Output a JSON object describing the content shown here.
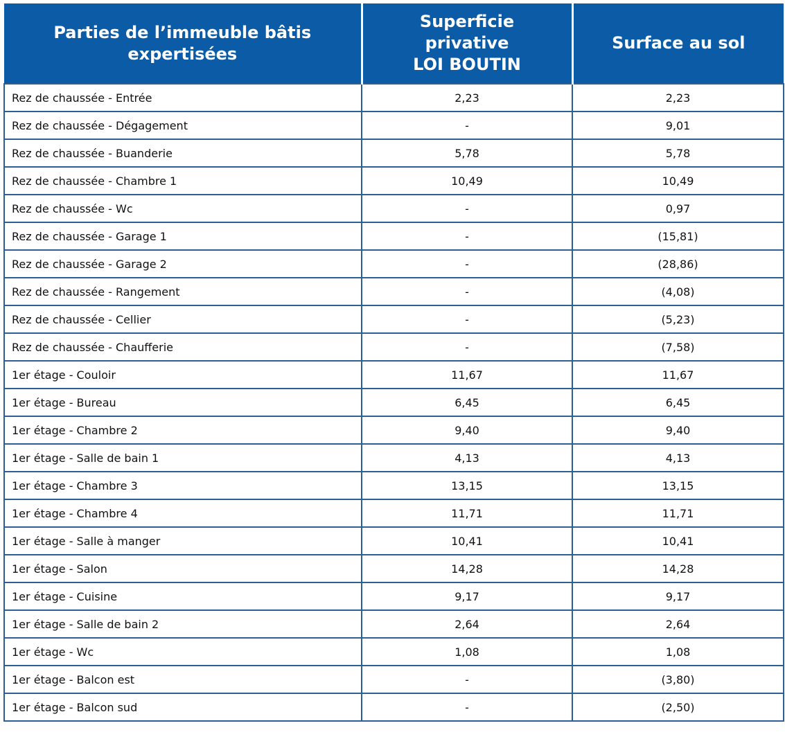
{
  "table": {
    "headers": {
      "col1_lines": [
        "Parties de l’immeuble bâtis",
        "expertisées"
      ],
      "col2_lines": [
        "Superficie",
        "privative",
        "LOI BOUTIN"
      ],
      "col3": "Surface au sol"
    },
    "rows": [
      {
        "label": "Rez de chaussée - Entrée",
        "boutin": "2,23",
        "sol": "2,23"
      },
      {
        "label": "Rez de chaussée - Dégagement",
        "boutin": "-",
        "sol": "9,01"
      },
      {
        "label": "Rez de chaussée - Buanderie",
        "boutin": "5,78",
        "sol": "5,78"
      },
      {
        "label": "Rez de chaussée - Chambre 1",
        "boutin": "10,49",
        "sol": "10,49"
      },
      {
        "label": "Rez de chaussée - Wc",
        "boutin": "-",
        "sol": "0,97"
      },
      {
        "label": "Rez de chaussée - Garage 1",
        "boutin": "-",
        "sol": "(15,81)"
      },
      {
        "label": "Rez de chaussée - Garage 2",
        "boutin": "-",
        "sol": "(28,86)"
      },
      {
        "label": "Rez de chaussée - Rangement",
        "boutin": "-",
        "sol": "(4,08)"
      },
      {
        "label": "Rez de chaussée - Cellier",
        "boutin": "-",
        "sol": "(5,23)"
      },
      {
        "label": "Rez de chaussée - Chaufferie",
        "boutin": "-",
        "sol": "(7,58)"
      },
      {
        "label": "1er étage - Couloir",
        "boutin": "11,67",
        "sol": "11,67"
      },
      {
        "label": "1er étage - Bureau",
        "boutin": "6,45",
        "sol": "6,45"
      },
      {
        "label": "1er étage - Chambre 2",
        "boutin": "9,40",
        "sol": "9,40"
      },
      {
        "label": "1er étage - Salle de bain 1",
        "boutin": "4,13",
        "sol": "4,13"
      },
      {
        "label": "1er étage - Chambre 3",
        "boutin": "13,15",
        "sol": "13,15"
      },
      {
        "label": "1er étage - Chambre 4",
        "boutin": "11,71",
        "sol": "11,71"
      },
      {
        "label": "1er étage - Salle à manger",
        "boutin": "10,41",
        "sol": "10,41"
      },
      {
        "label": "1er étage - Salon",
        "boutin": "14,28",
        "sol": "14,28"
      },
      {
        "label": "1er étage - Cuisine",
        "boutin": "9,17",
        "sol": "9,17"
      },
      {
        "label": "1er étage - Salle de bain 2",
        "boutin": "2,64",
        "sol": "2,64"
      },
      {
        "label": "1er étage - Wc",
        "boutin": "1,08",
        "sol": "1,08"
      },
      {
        "label": "1er étage - Balcon est",
        "boutin": "-",
        "sol": "(3,80)"
      },
      {
        "label": "1er étage - Balcon sud",
        "boutin": "-",
        "sol": "(2,50)"
      }
    ]
  },
  "colors": {
    "header_bg": "#0b5ba6",
    "header_text": "#ffffff",
    "grid_line": "#2c5f94"
  }
}
